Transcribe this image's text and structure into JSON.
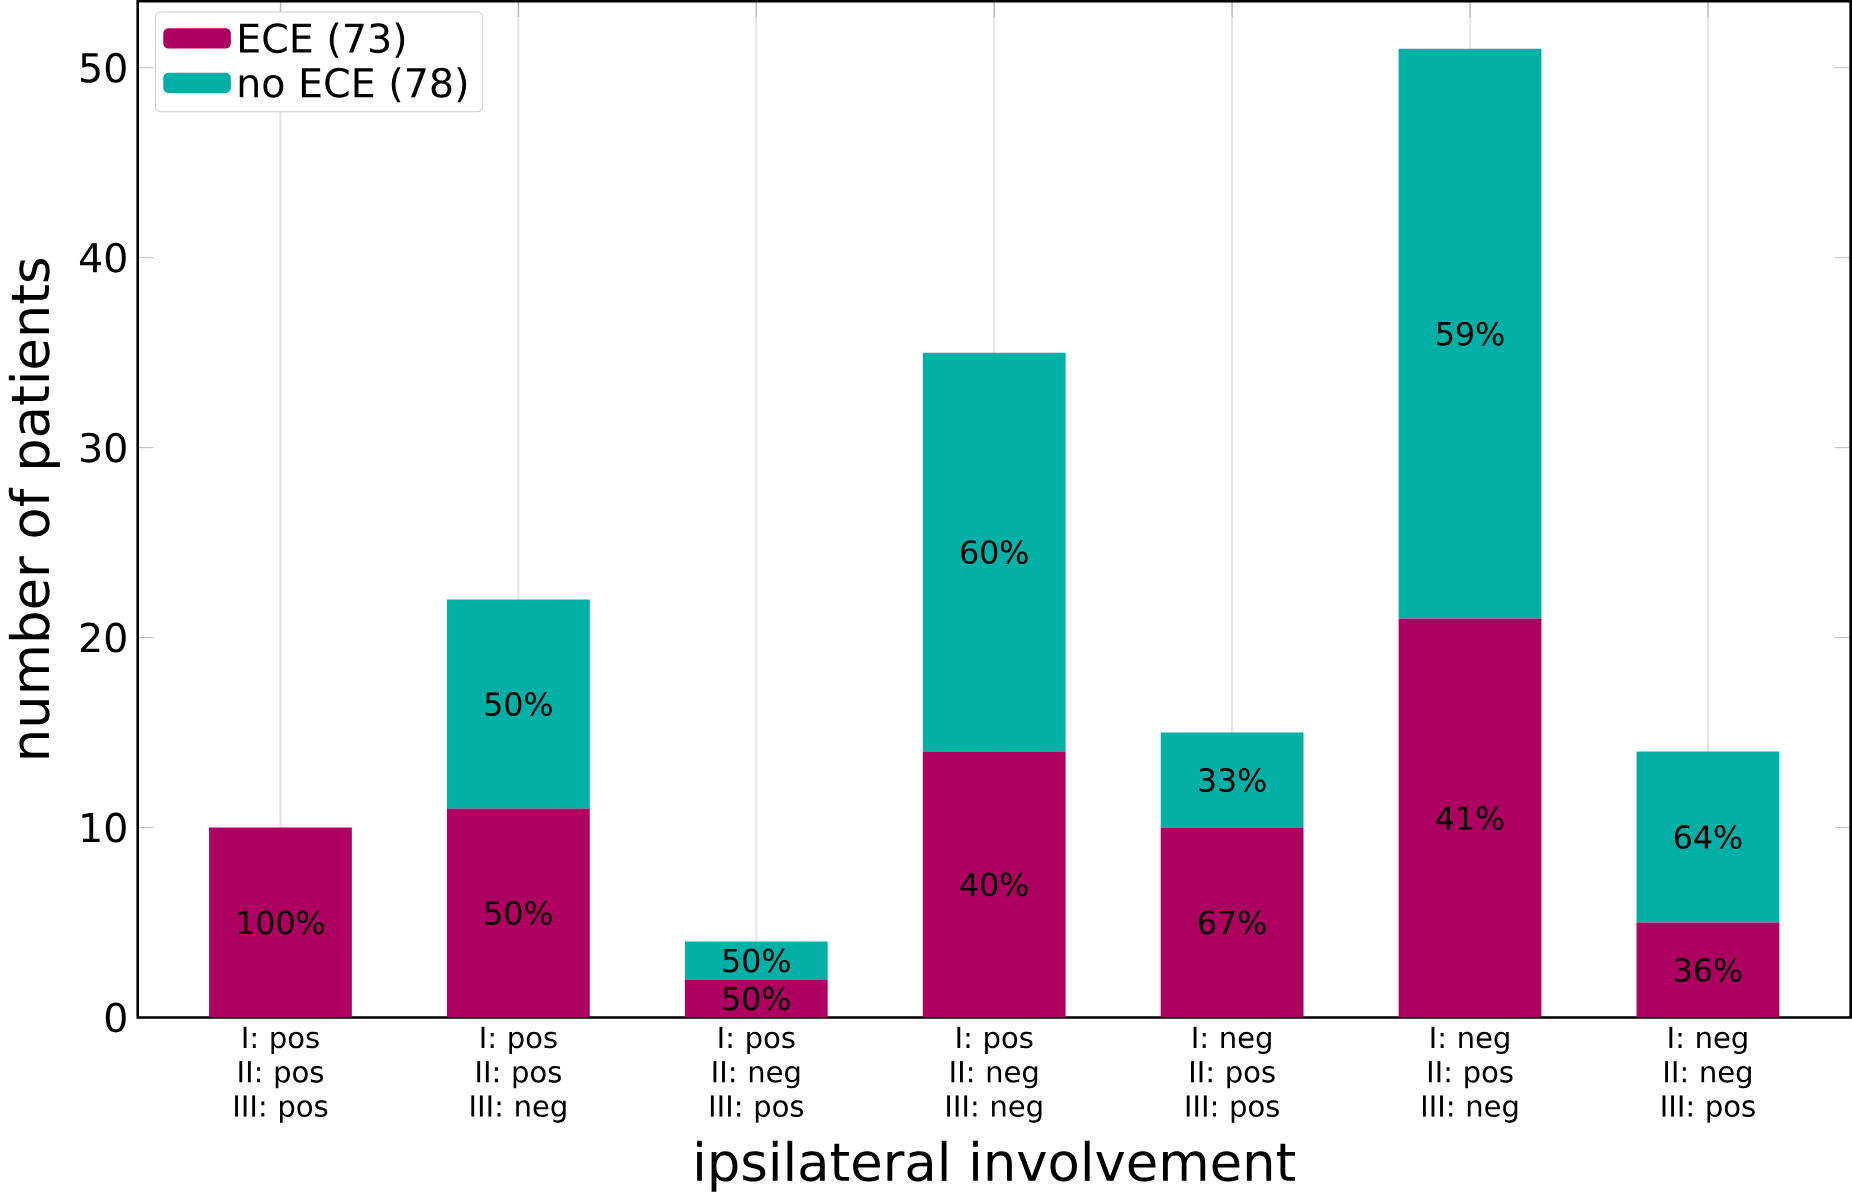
{
  "chart_data": {
    "type": "bar",
    "stacked": true,
    "xlabel": "ipsilateral involvement",
    "ylabel": "number of patients",
    "categories": [
      "I: pos II: pos III: pos",
      "I: pos II: pos III: neg",
      "I: pos II: neg III: pos",
      "I: pos II: neg III: neg",
      "I: neg II: pos III: pos",
      "I: neg II: pos III: neg",
      "I: neg II: neg III: pos"
    ],
    "series": [
      {
        "name": "ECE (73)",
        "color": "#ae0060",
        "values": [
          10,
          11,
          2,
          14,
          10,
          21,
          5
        ]
      },
      {
        "name": "no ECE (78)",
        "color": "#00afa5",
        "values": [
          0,
          11,
          2,
          21,
          5,
          30,
          9
        ]
      }
    ],
    "annotations": [
      "100%",
      "50%",
      "50%",
      "50%",
      "50%",
      "40%",
      "60%",
      "67%",
      "33%",
      "41%",
      "59%",
      "36%",
      "64%"
    ],
    "ylim": [
      0,
      53.5
    ],
    "yticks": [
      0,
      10,
      20,
      30,
      40,
      50
    ],
    "grid": "x",
    "legend": "top left"
  }
}
